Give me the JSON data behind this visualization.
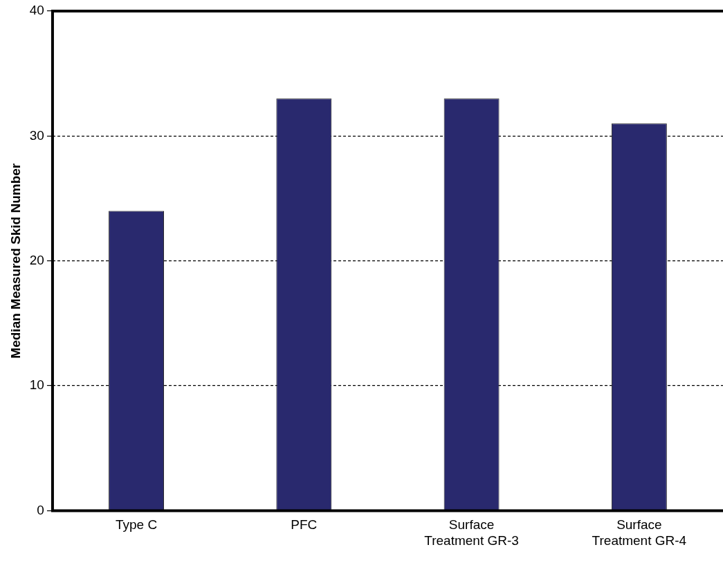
{
  "chart_data": {
    "type": "bar",
    "ylabel": "Median Measured Skid Number",
    "categories": [
      "Type C",
      "PFC",
      "Surface Treatment GR-3",
      "Surface Treatment GR-4"
    ],
    "values": [
      24,
      33,
      33,
      31
    ],
    "color": "#29296e",
    "ylim": [
      0,
      40
    ],
    "yticks": [
      0,
      10,
      20,
      30,
      40
    ],
    "grid": "y",
    "line_style": "dashed",
    "legend": false
  }
}
